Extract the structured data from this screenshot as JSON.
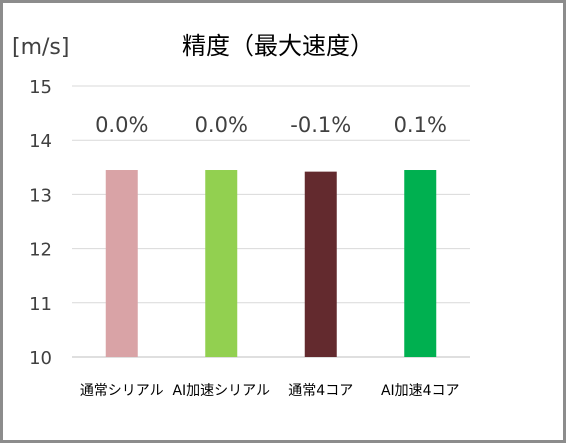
{
  "chart_data": {
    "type": "bar",
    "title": "精度（最大速度）",
    "ylabel": "[m/s]",
    "xlabel": "",
    "ylim": [
      10,
      15
    ],
    "yticks": [
      10,
      11,
      12,
      13,
      14,
      15
    ],
    "grid": true,
    "legend": "none",
    "categories": [
      "通常シリアル",
      "AI加速シリアル",
      "通常4コア",
      "AI加速4コア"
    ],
    "values": [
      13.45,
      13.45,
      13.42,
      13.45
    ],
    "data_labels": [
      "0.0%",
      "0.0%",
      "-0.1%",
      "0.1%"
    ],
    "colors": [
      "#d9a3a6",
      "#92d050",
      "#632a2e",
      "#00b050"
    ]
  },
  "style": {
    "border_color": "#8c8c8c",
    "grid_color": "#d9d9d9",
    "axis_color": "#bfbfbf",
    "text_color": "#404040",
    "title_color": "#000000"
  }
}
